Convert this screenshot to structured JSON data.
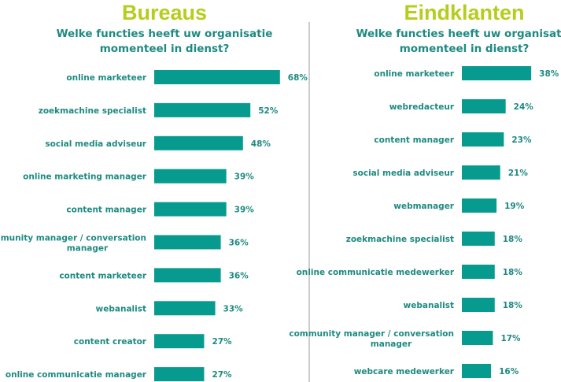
{
  "colors": {
    "title": "#b6cd1d",
    "text": "#1e8a80",
    "bar": "#079b8f",
    "divider": "#999999"
  },
  "chart_data": [
    {
      "type": "bar",
      "orientation": "horizontal",
      "title": "Bureaus",
      "subtitle": [
        "Welke functies heeft uw organisatie",
        "momenteel in dienst?"
      ],
      "categories": [
        [
          "online marketeer"
        ],
        [
          "zoekmachine specialist"
        ],
        [
          "social media adviseur"
        ],
        [
          "online marketing manager"
        ],
        [
          "content manager"
        ],
        [
          "community manager / conversation",
          "manager"
        ],
        [
          "content marketeer"
        ],
        [
          "webanalist"
        ],
        [
          "content creator"
        ],
        [
          "online communicatie manager"
        ]
      ],
      "values": [
        68,
        52,
        48,
        39,
        39,
        36,
        36,
        33,
        27,
        27
      ],
      "value_labels": [
        "68%",
        "52%",
        "48%",
        "39%",
        "39%",
        "36%",
        "36%",
        "33%",
        "27%",
        "27%"
      ]
    },
    {
      "type": "bar",
      "orientation": "horizontal",
      "title": "Eindklanten",
      "subtitle": [
        "Welke functies heeft uw organisatie",
        "momenteel in dienst?"
      ],
      "categories": [
        [
          "online marketeer"
        ],
        [
          "webredacteur"
        ],
        [
          "content manager"
        ],
        [
          "social media adviseur"
        ],
        [
          "webmanager"
        ],
        [
          "zoekmachine specialist"
        ],
        [
          "online communicatie medewerker"
        ],
        [
          "webanalist"
        ],
        [
          "community manager / conversation",
          "manager"
        ],
        [
          "webcare medewerker"
        ]
      ],
      "values": [
        38,
        24,
        23,
        21,
        19,
        18,
        18,
        18,
        17,
        16
      ],
      "value_labels": [
        "38%",
        "24%",
        "23%",
        "21%",
        "19%",
        "18%",
        "18%",
        "18%",
        "17%",
        "16%"
      ]
    }
  ]
}
